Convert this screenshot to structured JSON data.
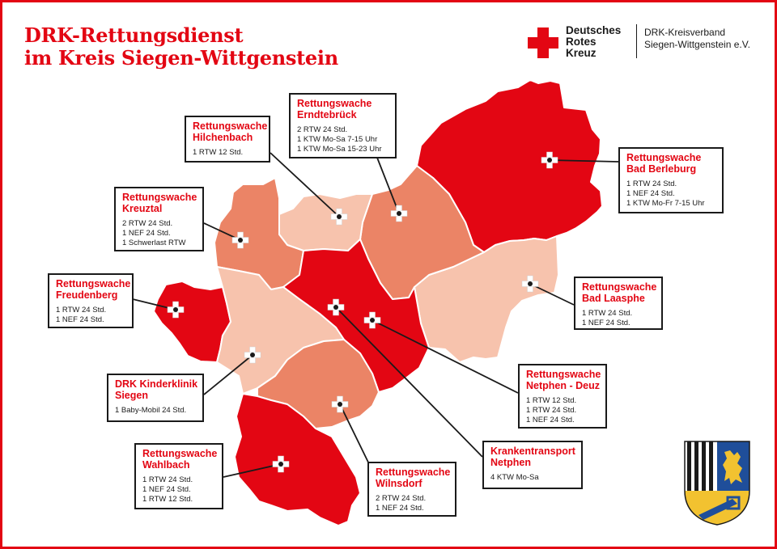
{
  "title": {
    "line1": "DRK-Rettungsdienst",
    "line2": "im Kreis Siegen-Wittgenstein"
  },
  "logo": {
    "drk_line1": "Deutsches",
    "drk_line2": "Rotes",
    "drk_line3": "Kreuz",
    "kreisverband_line1": "DRK-Kreisverband",
    "kreisverband_line2": "Siegen-Wittgenstein e.V."
  },
  "colors": {
    "red": "#e30613",
    "medium": "#eb8466",
    "light": "#f7c3ad",
    "border": "#1a1a1a"
  },
  "icons": {
    "station_marker": "white-cross-marker-icon",
    "brand": "red-cross-icon",
    "crest": "district-coat-of-arms"
  },
  "regions": [
    {
      "name": "Bad Berleburg",
      "shade": "red"
    },
    {
      "name": "Erndtebrück",
      "shade": "medium"
    },
    {
      "name": "Hilchenbach",
      "shade": "light"
    },
    {
      "name": "Kreuztal",
      "shade": "medium"
    },
    {
      "name": "Bad Laasphe",
      "shade": "light"
    },
    {
      "name": "Netphen",
      "shade": "red"
    },
    {
      "name": "Freudenberg",
      "shade": "red"
    },
    {
      "name": "Siegen",
      "shade": "light"
    },
    {
      "name": "Wilnsdorf",
      "shade": "medium"
    },
    {
      "name": "Wahlbach",
      "shade": "red"
    }
  ],
  "stations": [
    {
      "id": "hilchenbach",
      "title": [
        "Rettungswache",
        "Hilchenbach"
      ],
      "lines": [
        "1 RTW 12 Std."
      ]
    },
    {
      "id": "erndtebrueck",
      "title": [
        "Rettungswache",
        "Erndtebrück"
      ],
      "lines": [
        "2 RTW 24 Std.",
        "1 KTW Mo-Sa 7-15 Uhr",
        "1 KTW Mo-Sa 15-23 Uhr"
      ]
    },
    {
      "id": "bad-berleburg",
      "title": [
        "Rettungswache",
        "Bad Berleburg"
      ],
      "lines": [
        "1 RTW 24 Std.",
        "1 NEF 24 Std.",
        "1 KTW Mo-Fr 7-15 Uhr"
      ]
    },
    {
      "id": "kreuztal",
      "title": [
        "Rettungswache",
        "Kreuztal"
      ],
      "lines": [
        "2 RTW 24 Std.",
        "1 NEF 24 Std.",
        "1 Schwerlast RTW"
      ]
    },
    {
      "id": "freudenberg",
      "title": [
        "Rettungswache",
        "Freudenberg"
      ],
      "lines": [
        "1 RTW 24 Std.",
        "1 NEF 24 Std."
      ]
    },
    {
      "id": "bad-laasphe",
      "title": [
        "Rettungswache",
        "Bad Laasphe"
      ],
      "lines": [
        "1 RTW 24 Std.",
        "1 NEF 24 Std."
      ]
    },
    {
      "id": "kinderklinik",
      "title": [
        "DRK Kinderklinik",
        "Siegen"
      ],
      "lines": [
        "1 Baby-Mobil 24 Std."
      ]
    },
    {
      "id": "netphen-deuz",
      "title": [
        "Rettungswache",
        "Netphen - Deuz"
      ],
      "lines": [
        "1 RTW 12 Std.",
        "1 RTW 24 Std.",
        "1 NEF 24 Std."
      ]
    },
    {
      "id": "krankentransport-netphen",
      "title": [
        "Krankentransport",
        "Netphen"
      ],
      "lines": [
        "4 KTW Mo-Sa"
      ]
    },
    {
      "id": "wahlbach",
      "title": [
        "Rettungswache",
        "Wahlbach"
      ],
      "lines": [
        "1 RTW 24 Std.",
        "1 NEF 24 Std.",
        "1 RTW 12 Std."
      ]
    },
    {
      "id": "wilnsdorf",
      "title": [
        "Rettungswache",
        "Wilnsdorf"
      ],
      "lines": [
        "2 RTW 24 Std.",
        "1 NEF 24 Std."
      ]
    }
  ]
}
